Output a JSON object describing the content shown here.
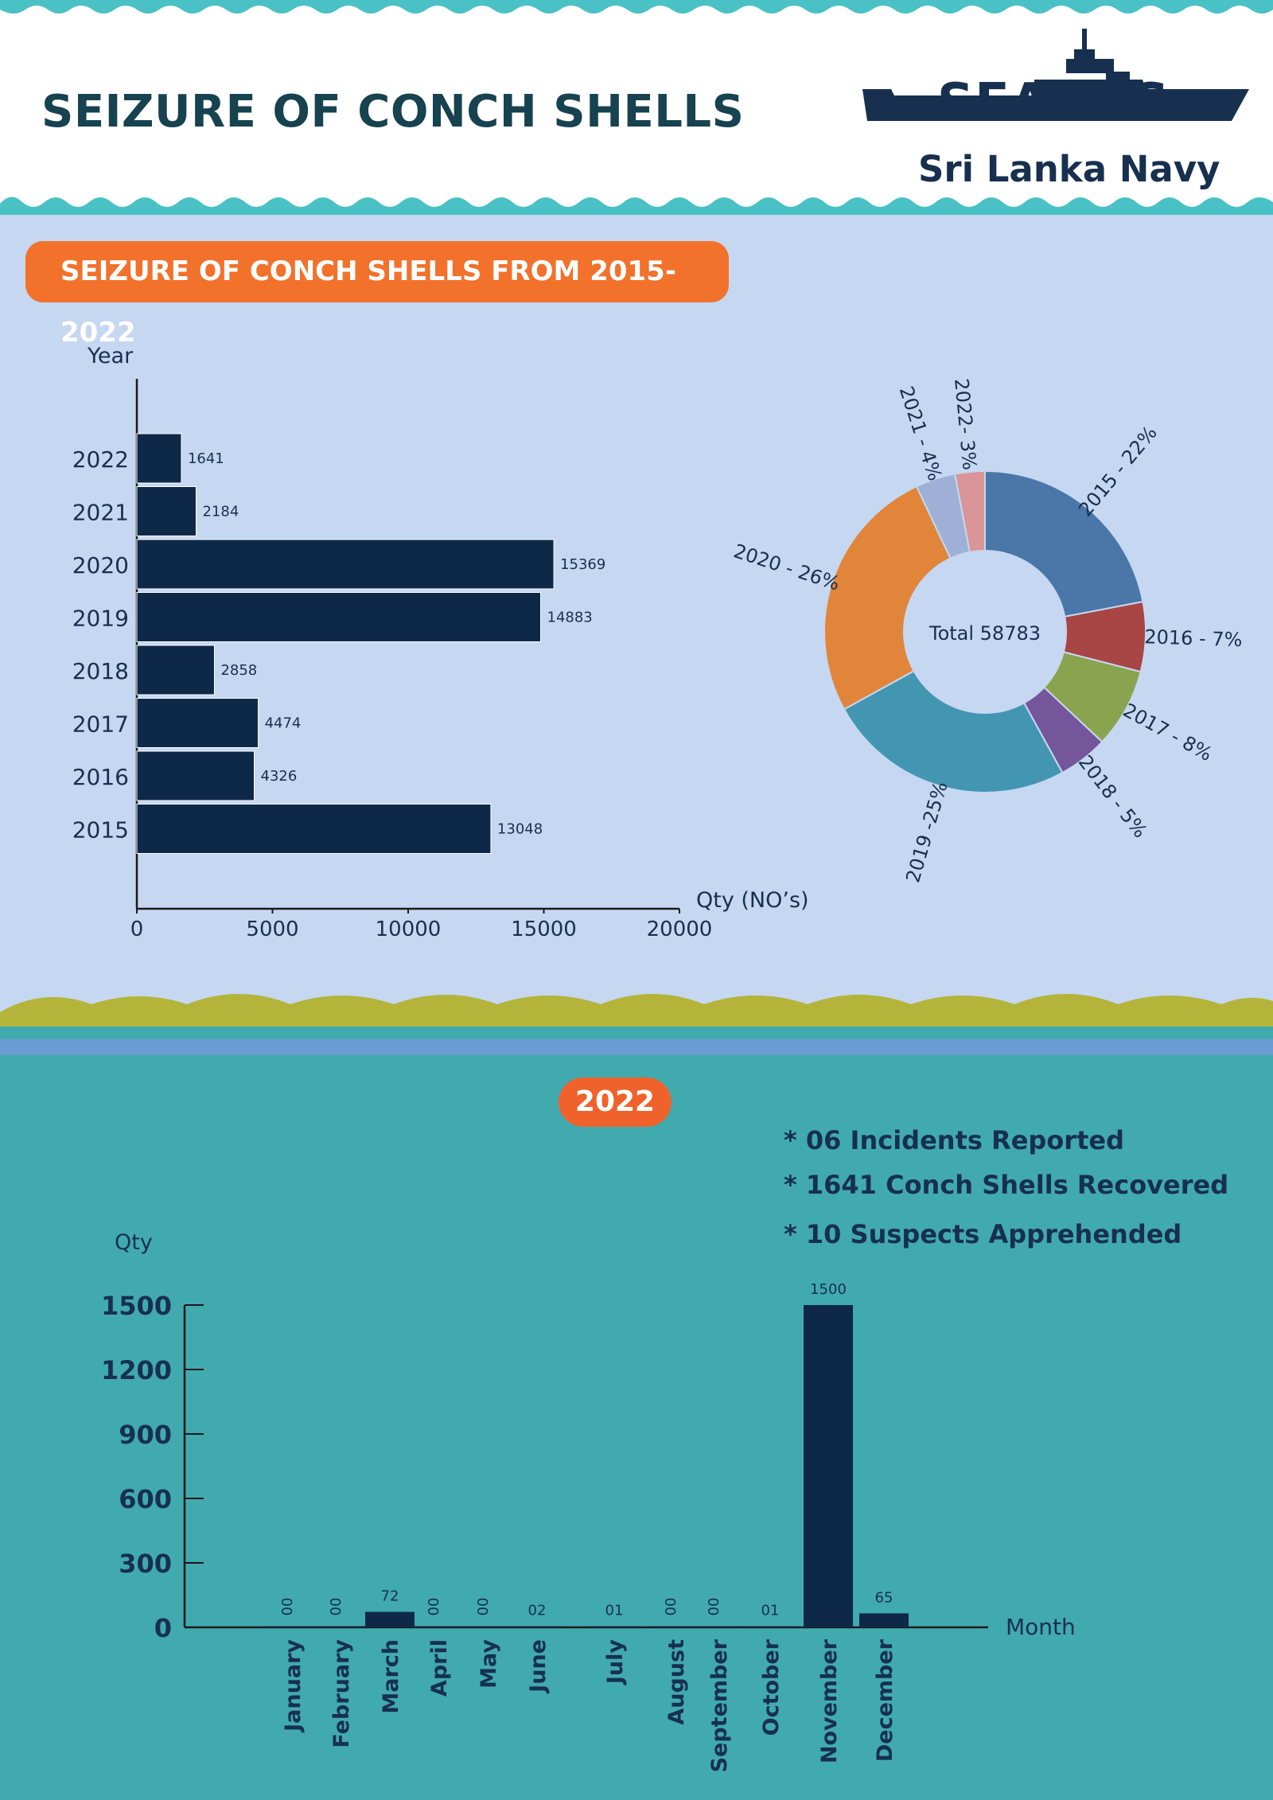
{
  "header": {
    "title": "SEIZURE OF CONCH SHELLS",
    "logo_text": "SEAOPS",
    "organization": "Sri Lanka Navy"
  },
  "section_2015_2022": {
    "heading": "SEIZURE OF CONCH SHELLS FROM 2015-2022"
  },
  "section_2022": {
    "year_badge": "2022",
    "stats": [
      "* 06 Incidents Reported",
      "* 1641 Conch Shells Recovered",
      "* 10 Suspects Apprehended"
    ]
  },
  "colors": {
    "bar": "#0e2948",
    "section1_bg": "#c6d7f1",
    "section2_bg": "#41aaae",
    "accent_orange": "#f2712b",
    "wave_teal": "#49c1c5",
    "hill_olive": "#b4b43a"
  },
  "chart_data": [
    {
      "type": "bar",
      "orientation": "horizontal",
      "categories": [
        "2022",
        "2021",
        "2020",
        "2019",
        "2018",
        "2017",
        "2016",
        "2015"
      ],
      "values": [
        1641,
        2184,
        15369,
        14883,
        2858,
        4474,
        4326,
        13048
      ],
      "data_labels": [
        "1641",
        "2184",
        "15369",
        "14883",
        "2858",
        "4474",
        "4326",
        "13048"
      ],
      "xlabel": "Qty  (NO’s)",
      "ylabel": "Year",
      "xlim": [
        0,
        20000
      ],
      "xticks": [
        "0",
        "5000",
        "10000",
        "15000",
        "20000"
      ],
      "grid": false
    },
    {
      "type": "pie",
      "variant": "donut",
      "center_label": "Total 58783",
      "slices": [
        {
          "label": "2015 - 22%",
          "value": 22,
          "color": "#4a76a8"
        },
        {
          "label": "2016 - 7%",
          "value": 7,
          "color": "#a84545"
        },
        {
          "label": "2017 - 8%",
          "value": 8,
          "color": "#8aa34e"
        },
        {
          "label": "2018 - 5%",
          "value": 5,
          "color": "#75569a"
        },
        {
          "label": "2019 -25%",
          "value": 25,
          "color": "#4396b1"
        },
        {
          "label": "2020 - 26%",
          "value": 26,
          "color": "#e0853a"
        },
        {
          "label": "2021 - 4%",
          "value": 4,
          "color": "#9fb0d6"
        },
        {
          "label": "2022- 3%",
          "value": 3,
          "color": "#d99597"
        }
      ]
    },
    {
      "type": "bar",
      "categories": [
        "January",
        "February",
        "March",
        "April",
        "May",
        "June",
        "July",
        "August",
        "September",
        "October",
        "November",
        "December"
      ],
      "values": [
        0,
        0,
        72,
        0,
        0,
        2,
        1,
        0,
        0,
        1,
        1500,
        65
      ],
      "data_labels": [
        "00",
        "00",
        "72",
        "00",
        "00",
        "02",
        "01",
        "00",
        "00",
        "01",
        "1500",
        "65"
      ],
      "xlabel": "Month",
      "ylabel": "Qty",
      "ylim": [
        0,
        1500
      ],
      "yticks": [
        "0",
        "300",
        "600",
        "900",
        "1200",
        "1500"
      ],
      "grid": false
    }
  ]
}
